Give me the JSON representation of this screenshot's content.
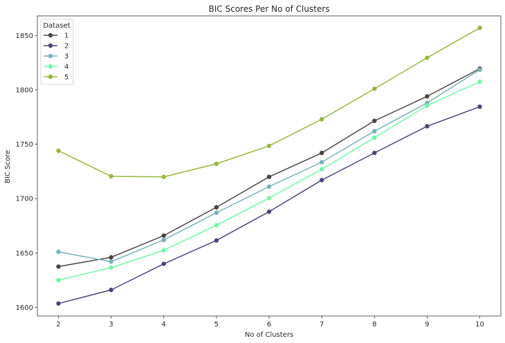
{
  "chart_data": {
    "type": "line",
    "title": "BIC Scores Per No of Clusters",
    "xlabel": "No of Clusters",
    "ylabel": "BIC Score",
    "x": [
      2,
      3,
      4,
      5,
      6,
      7,
      8,
      9,
      10
    ],
    "xlim": [
      1.6,
      10.4
    ],
    "ylim": [
      1592,
      1868
    ],
    "yticks": [
      1600,
      1650,
      1700,
      1750,
      1800,
      1850
    ],
    "grid": false,
    "legend": {
      "title": "Dataset",
      "placement": "top-left"
    },
    "series": [
      {
        "name": "1",
        "color": "#4a4442",
        "values": [
          1637.5,
          1646,
          1666,
          1692,
          1720,
          1742,
          1771.5,
          1794,
          1819.5
        ]
      },
      {
        "name": "2",
        "color": "#4c4478",
        "values": [
          1603.5,
          1616,
          1640,
          1661.5,
          1688,
          1717,
          1742,
          1766.5,
          1784.5
        ]
      },
      {
        "name": "3",
        "color": "#79b1b8",
        "values": [
          1651,
          1642,
          1662,
          1687,
          1711,
          1733.5,
          1762,
          1788,
          1818.5
        ]
      },
      {
        "name": "4",
        "color": "#74f5a9",
        "values": [
          1625,
          1636.5,
          1652.5,
          1675.5,
          1700.5,
          1727,
          1756,
          1785.5,
          1807.5
        ]
      },
      {
        "name": "5",
        "color": "#97b740",
        "values": [
          1744,
          1720.5,
          1720,
          1732,
          1748.5,
          1773,
          1801,
          1829.5,
          1857
        ]
      }
    ]
  }
}
